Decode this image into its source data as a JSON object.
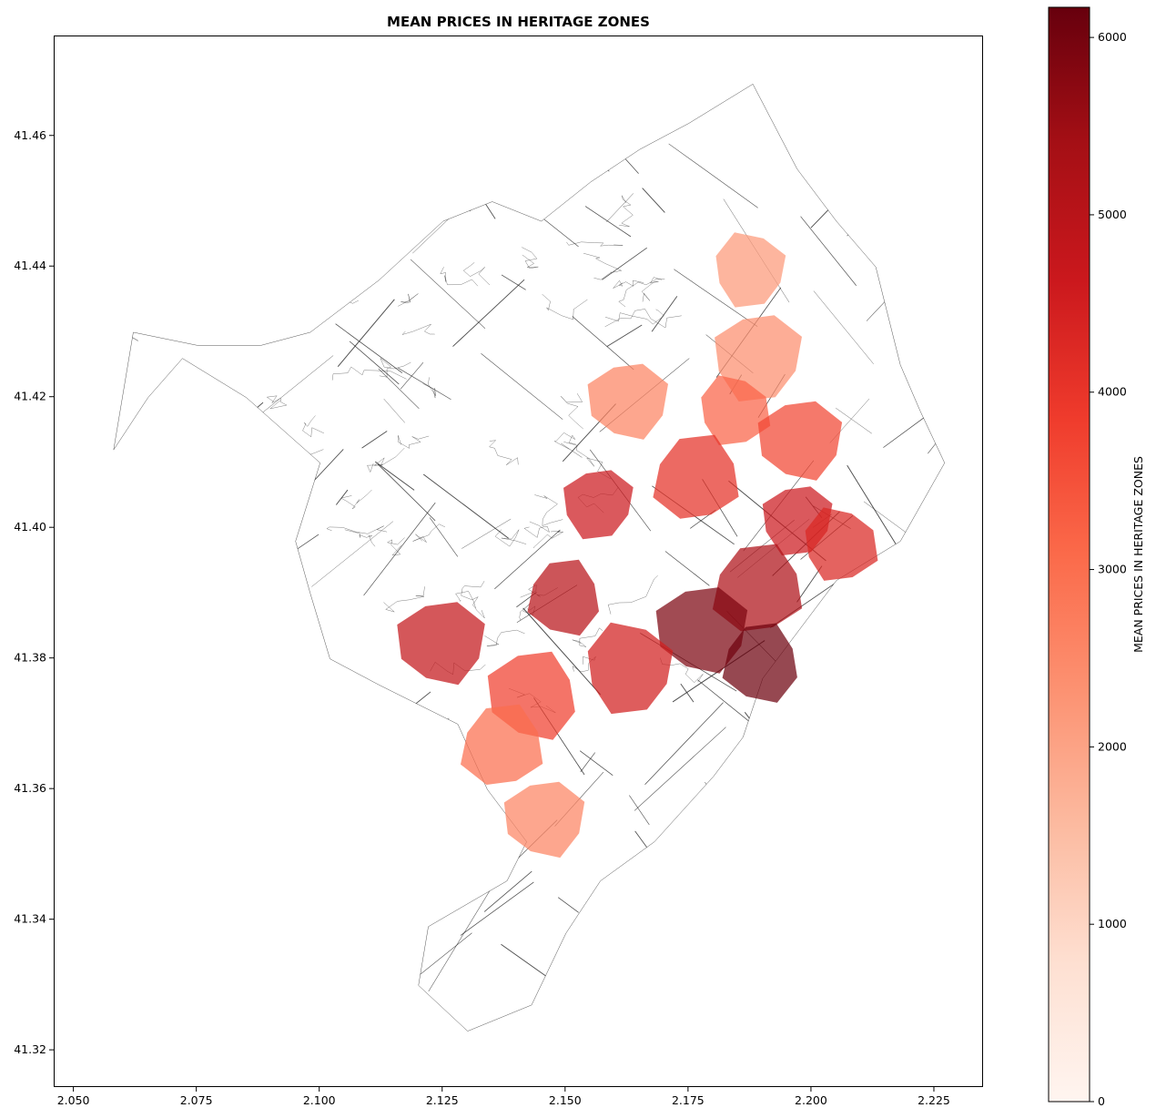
{
  "title": "MEAN PRICES IN HERITAGE ZONES",
  "colorbar": {
    "label": "MEAN PRICES IN HERITAGE ZONES",
    "min": 0,
    "max": 6170,
    "ticks": [
      "0",
      "1000",
      "2000",
      "3000",
      "4000",
      "5000",
      "6000"
    ],
    "tick_values": [
      0,
      1000,
      2000,
      3000,
      4000,
      5000,
      6000
    ],
    "colormap": "Reds",
    "stops": [
      "#fff5f0",
      "#fee0d2",
      "#fcbba1",
      "#fc9272",
      "#fb6a4a",
      "#ef3b2c",
      "#cb181d",
      "#a50f15",
      "#67000d"
    ]
  },
  "axes": {
    "x_ticks": [
      "2.050",
      "2.075",
      "2.100",
      "2.125",
      "2.150",
      "2.175",
      "2.200",
      "2.225"
    ],
    "x_tick_values": [
      2.05,
      2.075,
      2.1,
      2.125,
      2.15,
      2.175,
      2.2,
      2.225
    ],
    "y_ticks": [
      "41.32",
      "41.34",
      "41.36",
      "41.38",
      "41.40",
      "41.42",
      "41.44",
      "41.46"
    ],
    "y_tick_values": [
      41.32,
      41.34,
      41.36,
      41.38,
      41.4,
      41.42,
      41.44,
      41.46
    ],
    "xlim": [
      2.046,
      2.235
    ],
    "ylim": [
      41.3143,
      41.4753
    ]
  },
  "chart_data": {
    "type": "heatmap",
    "title": "MEAN PRICES IN HERITAGE ZONES",
    "xlabel": "",
    "ylabel": "",
    "value_label": "MEAN PRICES IN HERITAGE ZONES",
    "value_range": [
      0,
      6170
    ],
    "zones": [
      {
        "lon": 2.1875,
        "lat": 41.4395,
        "value": 2200
      },
      {
        "lon": 2.189,
        "lat": 41.4265,
        "value": 2400
      },
      {
        "lon": 2.184,
        "lat": 41.418,
        "value": 3200
      },
      {
        "lon": 2.1625,
        "lat": 41.4195,
        "value": 2600
      },
      {
        "lon": 2.1975,
        "lat": 41.4135,
        "value": 3700
      },
      {
        "lon": 2.1765,
        "lat": 41.4075,
        "value": 4100
      },
      {
        "lon": 2.1565,
        "lat": 41.404,
        "value": 4600
      },
      {
        "lon": 2.197,
        "lat": 41.4015,
        "value": 4600
      },
      {
        "lon": 2.2055,
        "lat": 41.3975,
        "value": 4300
      },
      {
        "lon": 2.189,
        "lat": 41.3905,
        "value": 5200
      },
      {
        "lon": 2.1495,
        "lat": 41.3895,
        "value": 5000
      },
      {
        "lon": 2.1775,
        "lat": 41.3845,
        "value": 5900
      },
      {
        "lon": 2.1895,
        "lat": 41.3795,
        "value": 6100
      },
      {
        "lon": 2.1245,
        "lat": 41.3825,
        "value": 4800
      },
      {
        "lon": 2.163,
        "lat": 41.3785,
        "value": 4500
      },
      {
        "lon": 2.1435,
        "lat": 41.3745,
        "value": 3800
      },
      {
        "lon": 2.137,
        "lat": 41.3665,
        "value": 3000
      },
      {
        "lon": 2.1455,
        "lat": 41.3555,
        "value": 2600
      }
    ]
  }
}
